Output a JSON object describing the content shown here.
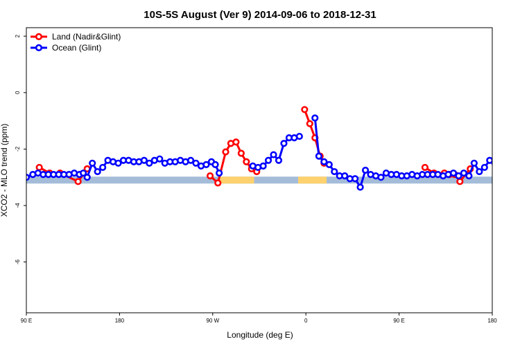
{
  "chart_data": {
    "type": "line",
    "title": "10S-5S August (Ver 9)   2014-09-06 to 2018-12-31",
    "xlabel": "Longitude (deg E)",
    "ylabel": "XCO2 - MLO trend (ppm)",
    "xlim": [
      90,
      450
    ],
    "ylim": [
      -7.8,
      2.3
    ],
    "x_ticks": [
      {
        "value": 90,
        "label": "90 E"
      },
      {
        "value": 162,
        "label": "180"
      },
      {
        "value": 234,
        "label": "90 W"
      },
      {
        "value": 306,
        "label": "0"
      },
      {
        "value": 378,
        "label": "90 E"
      },
      {
        "value": 450,
        "label": "180"
      }
    ],
    "y_ticks": [
      {
        "value": 2,
        "label": "2"
      },
      {
        "value": 0,
        "label": "0"
      },
      {
        "value": -2,
        "label": "-2"
      },
      {
        "value": -4,
        "label": "-4"
      },
      {
        "value": -6,
        "label": "-6"
      }
    ],
    "grid": false,
    "legend_position": "top-left",
    "surface_bar": {
      "y": -3.1,
      "ocean_color": "#a4bcd8",
      "land_color": "#fdd26e",
      "land_segments": [
        [
          239,
          266
        ],
        [
          300,
          322
        ]
      ]
    },
    "series": [
      {
        "name": "Land (Nadir&Glint)",
        "color": "#ff0000",
        "segments": [
          [
            [
              100,
              -2.65
            ],
            [
              108,
              -2.85
            ],
            [
              116,
              -2.85
            ],
            [
              130,
              -3.15
            ],
            [
              137,
              -2.7
            ]
          ],
          [
            [
              232,
              -2.95
            ],
            [
              238,
              -3.2
            ],
            [
              244,
              -2.1
            ],
            [
              248,
              -1.8
            ],
            [
              252,
              -1.75
            ],
            [
              256,
              -2.15
            ],
            [
              260,
              -2.45
            ],
            [
              264,
              -2.7
            ],
            [
              268,
              -2.8
            ]
          ],
          [
            [
              305,
              -0.6
            ],
            [
              309,
              -1.1
            ],
            [
              313,
              -1.6
            ],
            [
              317,
              -2.25
            ],
            [
              320,
              -2.5
            ]
          ],
          [
            [
              398,
              -2.65
            ],
            [
              405,
              -2.85
            ],
            [
              413,
              -2.85
            ],
            [
              417,
              -2.9
            ],
            [
              421,
              -2.9
            ],
            [
              425,
              -3.15
            ],
            [
              433,
              -2.7
            ]
          ]
        ]
      },
      {
        "name": "Ocean (Glint)",
        "color": "#0000ff",
        "segments": [
          [
            [
              90,
              -3.0
            ],
            [
              95,
              -2.9
            ],
            [
              99,
              -2.85
            ],
            [
              103,
              -2.9
            ],
            [
              107,
              -2.9
            ],
            [
              111,
              -2.9
            ],
            [
              115,
              -2.9
            ],
            [
              119,
              -2.9
            ],
            [
              123,
              -2.9
            ],
            [
              127,
              -2.85
            ],
            [
              131,
              -2.9
            ],
            [
              134,
              -2.85
            ],
            [
              137,
              -3.0
            ],
            [
              141,
              -2.5
            ],
            [
              145,
              -2.8
            ],
            [
              149,
              -2.65
            ],
            [
              153,
              -2.4
            ],
            [
              157,
              -2.45
            ],
            [
              161,
              -2.5
            ],
            [
              165,
              -2.4
            ],
            [
              169,
              -2.4
            ],
            [
              173,
              -2.45
            ],
            [
              177,
              -2.45
            ],
            [
              181,
              -2.4
            ],
            [
              185,
              -2.5
            ],
            [
              189,
              -2.4
            ],
            [
              193,
              -2.35
            ],
            [
              197,
              -2.5
            ],
            [
              201,
              -2.45
            ],
            [
              205,
              -2.45
            ],
            [
              209,
              -2.4
            ],
            [
              213,
              -2.45
            ],
            [
              217,
              -2.4
            ],
            [
              221,
              -2.5
            ],
            [
              225,
              -2.6
            ],
            [
              229,
              -2.55
            ],
            [
              233,
              -2.45
            ],
            [
              236,
              -2.55
            ],
            [
              239,
              -2.85
            ]
          ],
          [
            [
              265,
              -2.6
            ],
            [
              269,
              -2.65
            ],
            [
              273,
              -2.6
            ],
            [
              277,
              -2.4
            ],
            [
              281,
              -2.2
            ],
            [
              285,
              -2.4
            ],
            [
              289,
              -1.8
            ],
            [
              293,
              -1.6
            ],
            [
              297,
              -1.6
            ],
            [
              301,
              -1.55
            ]
          ],
          [
            [
              313,
              -0.9
            ],
            [
              316,
              -2.25
            ],
            [
              320,
              -2.45
            ],
            [
              324,
              -2.55
            ],
            [
              328,
              -2.8
            ],
            [
              332,
              -2.95
            ],
            [
              336,
              -2.95
            ],
            [
              340,
              -3.05
            ],
            [
              344,
              -3.05
            ],
            [
              348,
              -3.35
            ],
            [
              352,
              -2.75
            ],
            [
              356,
              -2.9
            ],
            [
              360,
              -2.95
            ],
            [
              364,
              -3.0
            ],
            [
              368,
              -2.85
            ],
            [
              372,
              -2.9
            ],
            [
              376,
              -2.9
            ],
            [
              380,
              -2.95
            ],
            [
              384,
              -2.95
            ],
            [
              388,
              -2.9
            ],
            [
              392,
              -2.95
            ],
            [
              396,
              -2.9
            ],
            [
              400,
              -2.9
            ],
            [
              404,
              -2.9
            ],
            [
              408,
              -2.9
            ],
            [
              412,
              -2.95
            ],
            [
              416,
              -2.9
            ],
            [
              420,
              -2.85
            ],
            [
              424,
              -2.95
            ],
            [
              428,
              -2.85
            ],
            [
              432,
              -2.95
            ],
            [
              436,
              -2.5
            ],
            [
              440,
              -2.8
            ],
            [
              444,
              -2.65
            ],
            [
              448,
              -2.4
            ],
            [
              452,
              -2.5
            ],
            [
              456,
              -2.5
            ]
          ]
        ]
      }
    ]
  }
}
